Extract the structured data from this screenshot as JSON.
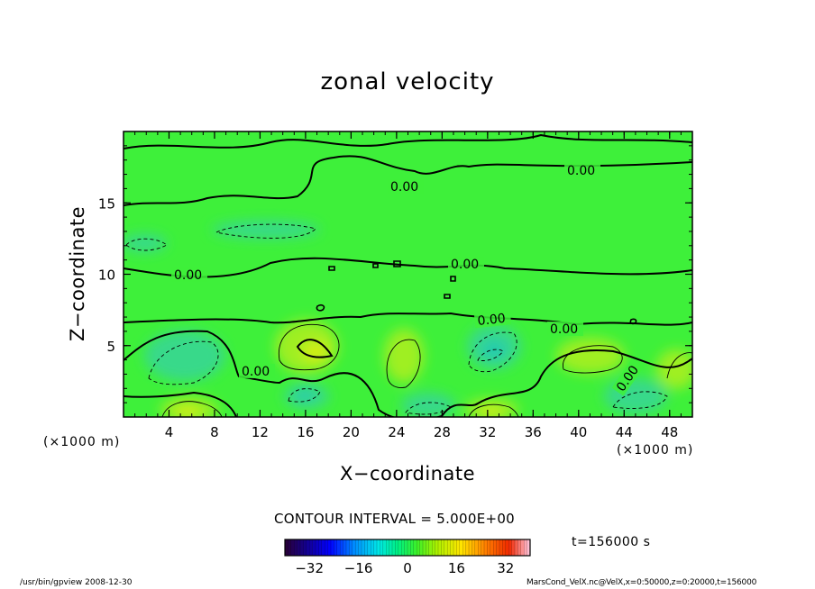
{
  "chart_data": {
    "type": "heatmap",
    "title": "zonal velocity",
    "xlabel": "X−coordinate",
    "ylabel": "Z−coordinate",
    "x_unit_left": "(×1000 m)",
    "x_unit_right": "(×1000 m)",
    "xlim": [
      0,
      50
    ],
    "ylim": [
      0,
      20
    ],
    "xticks": [
      4,
      8,
      12,
      16,
      20,
      24,
      28,
      32,
      36,
      40,
      44,
      48
    ],
    "yticks": [
      5,
      10,
      15
    ],
    "contour_labels": [
      "0.00",
      "0.00",
      "0.00",
      "0.00",
      "0.00",
      "0.00",
      "0.00",
      "0.00"
    ],
    "contour_interval_text": "CONTOUR INTERVAL = 5.000E+00",
    "time_text": "t=156000 s",
    "colorbar": {
      "range": [
        -40,
        40
      ],
      "ticks": [
        "−32",
        "−16",
        "0",
        "16",
        "32"
      ],
      "tick_values": [
        -32,
        -16,
        0,
        16,
        32
      ]
    },
    "colors": {
      "background_field": "#3ef03a",
      "negative_light": "#39d98a",
      "negative_medium": "#22c9b0",
      "positive_light": "#9fef22",
      "positive_medium": "#d6ee14"
    }
  },
  "footer": {
    "left": "/usr/bin/gpview   2008-12-30",
    "right": "MarsCond_VelX.nc@VelX,x=0:50000,z=0:20000,t=156000"
  }
}
